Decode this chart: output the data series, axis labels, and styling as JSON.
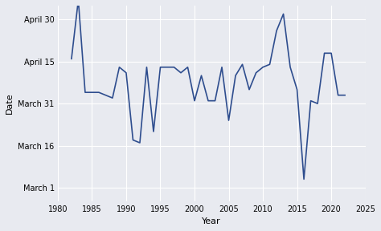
{
  "x": [
    1982,
    1983,
    1984,
    1985,
    1986,
    1987,
    1988,
    1989,
    1990,
    1991,
    1992,
    1993,
    1994,
    1995,
    1996,
    1997,
    1998,
    1999,
    2000,
    2001,
    2002,
    2003,
    2004,
    2005,
    2006,
    2007,
    2008,
    2009,
    2010,
    2011,
    2012,
    2013,
    2014,
    2015,
    2016,
    2017,
    2018,
    2019,
    2020,
    2021,
    2022
  ],
  "y": [
    106,
    127,
    94,
    94,
    94,
    93,
    92,
    103,
    101,
    77,
    76,
    103,
    80,
    103,
    103,
    103,
    101,
    103,
    91,
    100,
    91,
    91,
    103,
    84,
    100,
    104,
    95,
    101,
    103,
    104,
    116,
    122,
    103,
    95,
    63,
    91,
    90,
    108,
    108,
    93,
    93
  ],
  "tick_days": [
    60,
    75,
    90,
    105,
    120
  ],
  "tick_labels": [
    "March 1",
    "March 16",
    "March 31",
    "April 15",
    "April 30"
  ],
  "xticks": [
    1980,
    1985,
    1990,
    1995,
    2000,
    2005,
    2010,
    2015,
    2020,
    2025
  ],
  "xlim": [
    1980,
    2025
  ],
  "ylim": [
    55,
    125
  ],
  "xlabel": "Year",
  "ylabel": "Date",
  "line_color": "#2e4d8e",
  "bg_color": "#e8eaf0",
  "grid_color": "#ffffff"
}
